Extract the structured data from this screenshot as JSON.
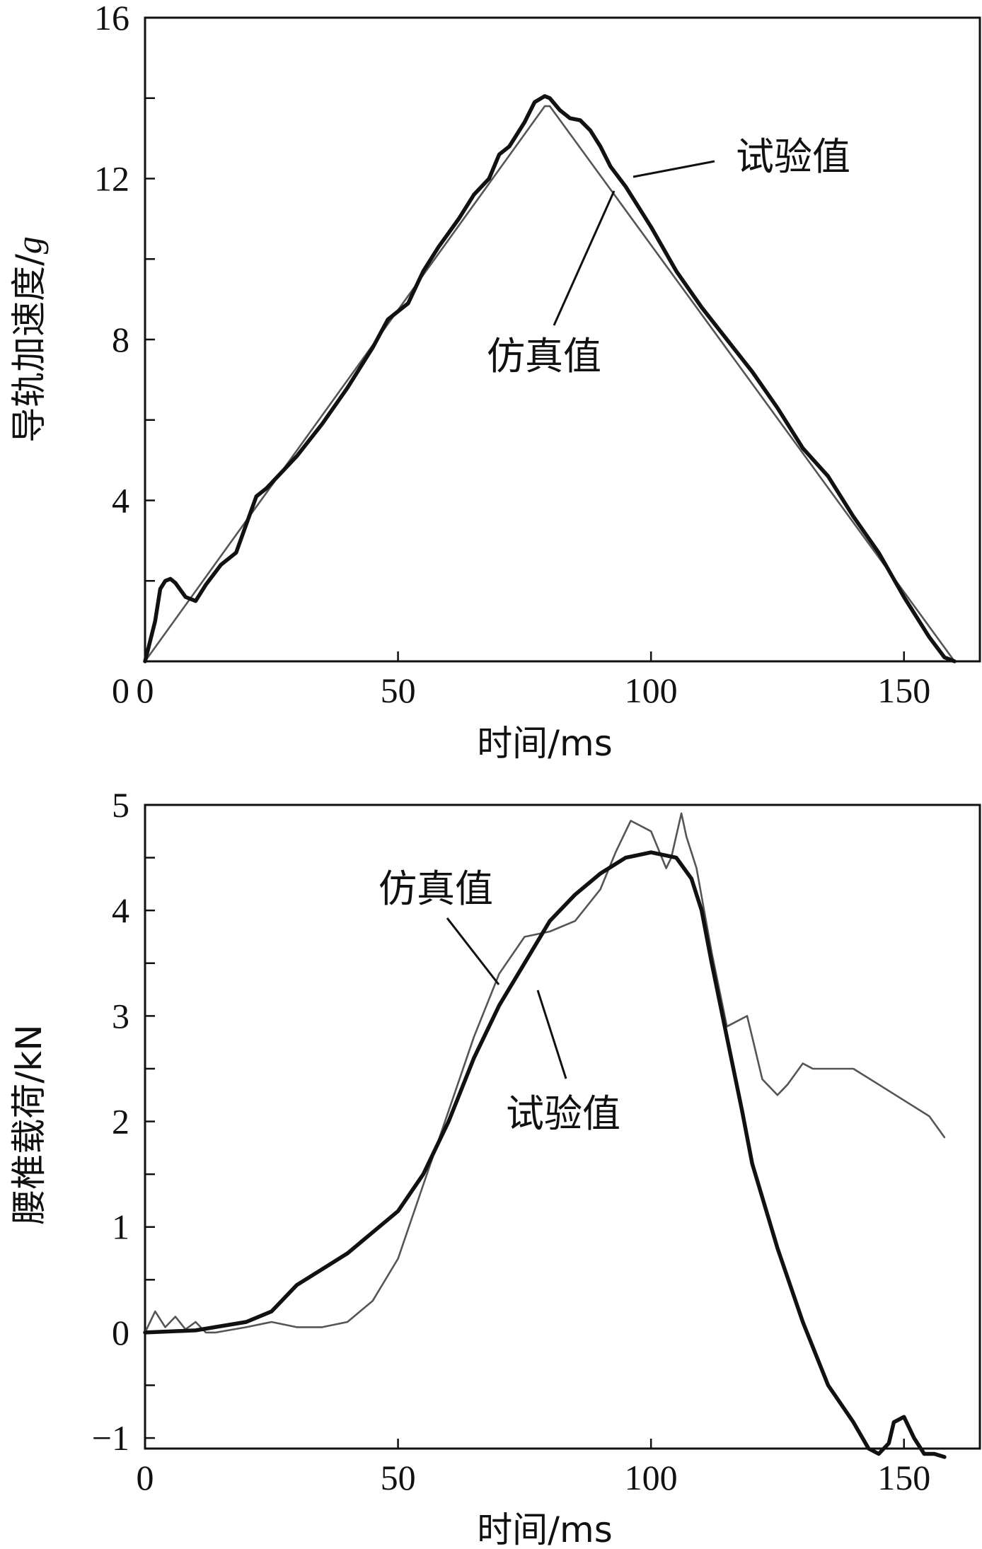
{
  "chart_data": [
    {
      "type": "line",
      "xlabel": "时间/ms",
      "ylabel_prefix": "导轨加速度/",
      "ylabel_unit": "g",
      "xlim": [
        0,
        165
      ],
      "ylim": [
        0,
        16
      ],
      "x_ticks": [
        0,
        50,
        100,
        150
      ],
      "y_ticks": [
        4,
        8,
        12,
        16
      ],
      "y_zero_label": "0",
      "annotations": [
        "试验值",
        "仿真值"
      ],
      "series": [
        {
          "name": "试验值",
          "x": [
            0,
            2,
            3,
            4,
            5,
            6,
            8,
            10,
            12,
            15,
            18,
            20,
            22,
            24,
            27,
            30,
            35,
            40,
            45,
            48,
            50,
            52,
            55,
            58,
            62,
            65,
            68,
            70,
            72,
            75,
            77,
            79,
            80,
            82,
            84,
            86,
            88,
            90,
            92,
            95,
            100,
            105,
            110,
            115,
            120,
            125,
            130,
            135,
            140,
            145,
            150,
            155,
            158,
            160
          ],
          "y": [
            0,
            1.0,
            1.8,
            2.0,
            2.05,
            1.95,
            1.6,
            1.5,
            1.9,
            2.4,
            2.7,
            3.4,
            4.1,
            4.3,
            4.7,
            5.1,
            5.9,
            6.8,
            7.8,
            8.5,
            8.7,
            8.9,
            9.7,
            10.3,
            11.0,
            11.6,
            12.0,
            12.6,
            12.8,
            13.4,
            13.9,
            14.05,
            14.0,
            13.7,
            13.5,
            13.45,
            13.2,
            12.8,
            12.3,
            11.8,
            10.8,
            9.7,
            8.8,
            8.0,
            7.2,
            6.3,
            5.3,
            4.6,
            3.6,
            2.7,
            1.6,
            0.6,
            0.1,
            0
          ]
        },
        {
          "name": "仿真值",
          "x": [
            0,
            79,
            80,
            160
          ],
          "y": [
            0,
            13.8,
            13.8,
            0
          ]
        }
      ]
    },
    {
      "type": "line",
      "xlabel": "时间/ms",
      "ylabel": "腰椎载荷/kN",
      "xlim": [
        0,
        165
      ],
      "ylim": [
        -1.1,
        5
      ],
      "x_ticks": [
        0,
        50,
        100,
        150
      ],
      "y_ticks": [
        -1,
        0,
        1,
        2,
        3,
        4,
        5
      ],
      "y_tick_labels": [
        "−1",
        "0",
        "1",
        "2",
        "3",
        "4",
        "5"
      ],
      "annotations": [
        "仿真值",
        "试验值"
      ],
      "series": [
        {
          "name": "仿真值",
          "x": [
            0,
            2,
            4,
            6,
            8,
            10,
            12,
            14,
            20,
            25,
            30,
            35,
            40,
            45,
            50,
            55,
            60,
            65,
            70,
            75,
            80,
            85,
            90,
            93,
            96,
            100,
            103,
            104,
            106,
            107,
            109,
            112,
            115,
            117,
            119,
            120,
            122,
            125,
            127,
            130,
            132,
            135,
            140,
            145,
            150,
            155,
            158
          ],
          "y": [
            0,
            0.2,
            0.05,
            0.15,
            0.03,
            0.1,
            0.0,
            0.0,
            0.05,
            0.1,
            0.05,
            0.05,
            0.1,
            0.3,
            0.7,
            1.4,
            2.1,
            2.8,
            3.4,
            3.75,
            3.8,
            3.9,
            4.2,
            4.55,
            4.85,
            4.75,
            4.4,
            4.5,
            4.92,
            4.7,
            4.4,
            3.6,
            2.9,
            2.95,
            3.0,
            2.8,
            2.4,
            2.25,
            2.35,
            2.55,
            2.5,
            2.5,
            2.5,
            2.35,
            2.2,
            2.05,
            1.85
          ]
        },
        {
          "name": "试验值",
          "x": [
            0,
            10,
            20,
            25,
            30,
            35,
            40,
            45,
            50,
            55,
            60,
            65,
            70,
            75,
            80,
            85,
            90,
            95,
            100,
            105,
            108,
            110,
            112,
            115,
            118,
            120,
            125,
            130,
            135,
            140,
            143,
            145,
            147,
            148,
            150,
            152,
            154,
            156,
            158
          ],
          "y": [
            0,
            0.02,
            0.1,
            0.2,
            0.45,
            0.6,
            0.75,
            0.95,
            1.15,
            1.5,
            2.0,
            2.6,
            3.1,
            3.5,
            3.9,
            4.15,
            4.35,
            4.5,
            4.55,
            4.5,
            4.3,
            4.0,
            3.5,
            2.8,
            2.1,
            1.6,
            0.8,
            0.1,
            -0.5,
            -0.85,
            -1.1,
            -1.15,
            -1.05,
            -0.85,
            -0.8,
            -1.0,
            -1.15,
            -1.15,
            -1.18
          ]
        }
      ]
    }
  ]
}
